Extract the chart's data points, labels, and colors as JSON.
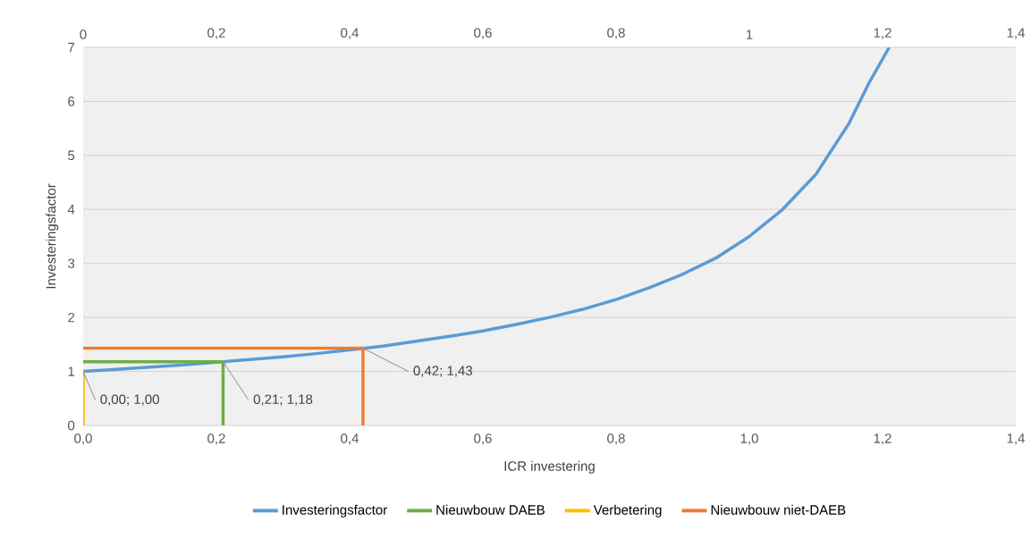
{
  "chart_data": {
    "type": "line",
    "xlabel": "ICR investering",
    "ylabel": "Investeringsfactor",
    "xlim": [
      0,
      1.4
    ],
    "ylim": [
      0,
      7
    ],
    "xticks": [
      {
        "value": 0,
        "label": "0,0"
      },
      {
        "value": 0.2,
        "label": "0,2"
      },
      {
        "value": 0.4,
        "label": "0,4"
      },
      {
        "value": 0.6,
        "label": "0,6"
      },
      {
        "value": 0.8,
        "label": "0,8"
      },
      {
        "value": 1.0,
        "label": "1,0"
      },
      {
        "value": 1.2,
        "label": "1,2"
      },
      {
        "value": 1.4,
        "label": "1,4"
      }
    ],
    "x2lim": [
      0,
      1.4
    ],
    "x2ticks": [
      0,
      {
        "value": 0.2,
        "label": "0,2"
      },
      {
        "value": 0.4,
        "label": "0,4"
      },
      {
        "value": 0.6,
        "label": "0,6"
      },
      {
        "value": 0.8,
        "label": "0,8"
      },
      1,
      {
        "value": 1.2,
        "label": "1,2"
      },
      {
        "value": 1.4,
        "label": "1,4"
      }
    ],
    "yticks": [
      0,
      1,
      2,
      3,
      4,
      5,
      6,
      7
    ],
    "grid": "y",
    "legend": "bottom",
    "marker": "none",
    "line_style": "solid",
    "series": [
      {
        "name": "Investeringsfactor",
        "color": "#5b9bd5",
        "x": [
          0,
          0.05,
          0.1,
          0.15,
          0.2,
          0.25,
          0.3,
          0.35,
          0.4,
          0.45,
          0.5,
          0.55,
          0.6,
          0.65,
          0.7,
          0.75,
          0.8,
          0.85,
          0.9,
          0.95,
          1.0,
          1.05,
          1.1,
          1.15,
          1.18,
          1.21
        ],
        "values": [
          1,
          1.04,
          1.08,
          1.12,
          1.17,
          1.22,
          1.27,
          1.33,
          1.4,
          1.47,
          1.56,
          1.65,
          1.75,
          1.87,
          2.0,
          2.15,
          2.33,
          2.55,
          2.8,
          3.1,
          3.5,
          4.0,
          4.65,
          5.6,
          6.35,
          7
        ]
      },
      {
        "name": "Nieuwbouw DAEB",
        "color": "#70ad47",
        "x": [
          0,
          0.21,
          0.21
        ],
        "values": [
          1.18,
          1.18,
          0
        ]
      },
      {
        "name": "Verbetering",
        "color": "#ffc000",
        "x": [
          0,
          0
        ],
        "values": [
          1,
          0
        ]
      },
      {
        "name": "Nieuwbouw niet-DAEB",
        "color": "#ed7d31",
        "x": [
          0,
          0.42,
          0.42
        ],
        "values": [
          1.43,
          1.43,
          0
        ]
      }
    ],
    "annotations": [
      {
        "text": "0,00; 1,00",
        "x": 0,
        "y": 1
      },
      {
        "text": "0,21; 1,18",
        "x": 0.21,
        "y": 1.18
      },
      {
        "text": "0,42; 1,43",
        "x": 0.42,
        "y": 1.43
      }
    ]
  }
}
